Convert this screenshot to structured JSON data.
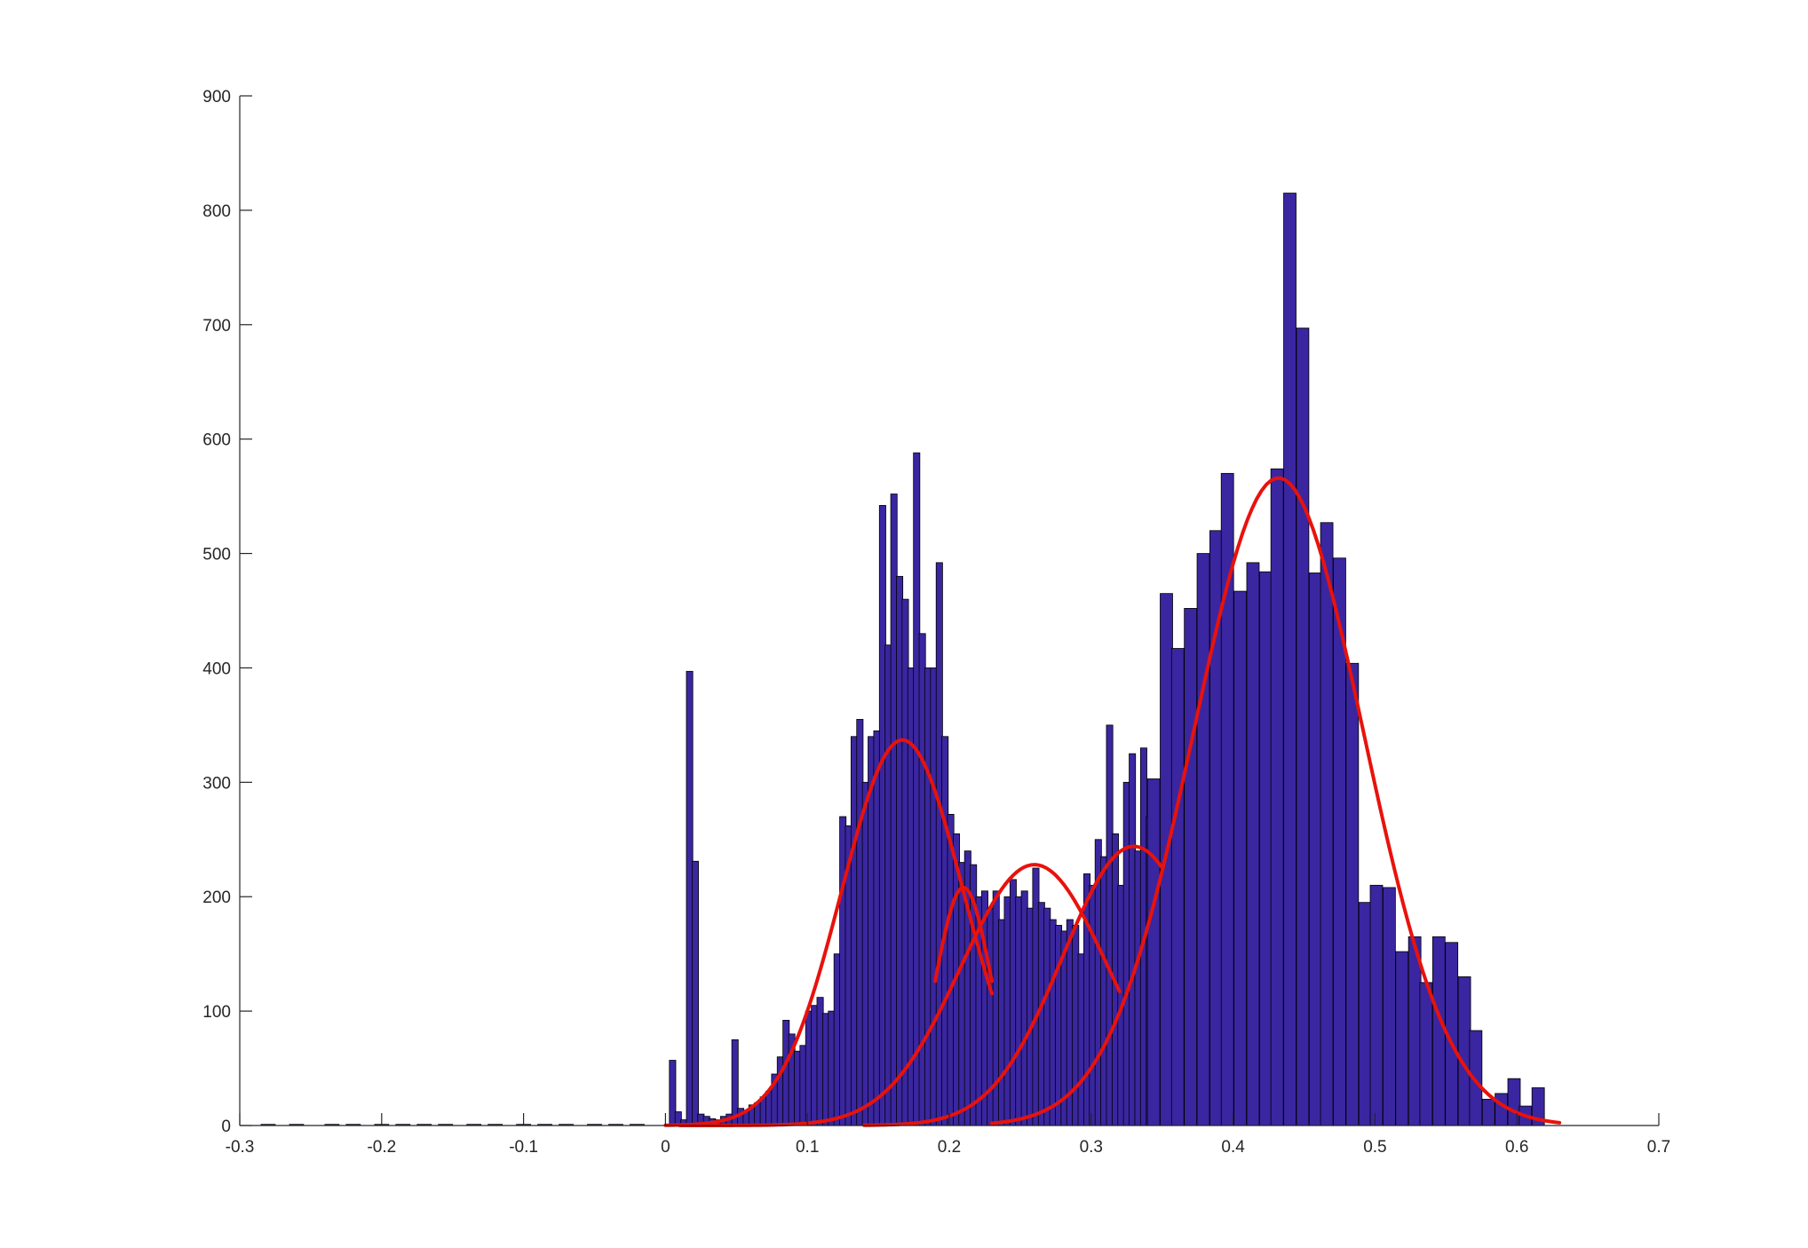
{
  "chart_data": {
    "type": "bar",
    "title": "",
    "xlabel": "",
    "ylabel": "",
    "xlim": [
      -0.3,
      0.7
    ],
    "ylim": [
      0,
      900
    ],
    "xticks": [
      "-0.3",
      "-0.2",
      "-0.1",
      "0",
      "0.1",
      "0.2",
      "0.3",
      "0.4",
      "0.5",
      "0.6",
      "0.7"
    ],
    "yticks": [
      "0",
      "100",
      "200",
      "300",
      "400",
      "500",
      "600",
      "700",
      "800",
      "900"
    ],
    "grid": false,
    "legend": "none",
    "colors": {
      "bars": "#3a26a0",
      "bar_edge": "#000000",
      "fit_curves": "#e8120c",
      "axis": "#262626"
    },
    "series": [
      {
        "type": "histogram",
        "bin_width": 0.01,
        "bins": [
          [
            -0.28,
            1
          ],
          [
            -0.26,
            1
          ],
          [
            -0.235,
            1
          ],
          [
            -0.22,
            1
          ],
          [
            -0.2,
            1
          ],
          [
            -0.185,
            1
          ],
          [
            -0.17,
            1
          ],
          [
            -0.155,
            1
          ],
          [
            -0.135,
            1
          ],
          [
            -0.12,
            1
          ],
          [
            -0.1,
            1
          ],
          [
            -0.085,
            1
          ],
          [
            -0.07,
            1
          ],
          [
            -0.05,
            1
          ],
          [
            -0.035,
            1
          ],
          [
            -0.02,
            1
          ]
        ]
      },
      {
        "type": "histogram",
        "bin_width": 0.0045,
        "bins": [
          [
            0.005,
            57
          ],
          [
            0.009,
            12
          ],
          [
            0.013,
            5
          ],
          [
            0.017,
            397
          ],
          [
            0.021,
            231
          ],
          [
            0.025,
            10
          ],
          [
            0.029,
            8
          ],
          [
            0.033,
            6
          ],
          [
            0.037,
            5
          ],
          [
            0.041,
            8
          ],
          [
            0.045,
            10
          ],
          [
            0.049,
            75
          ],
          [
            0.053,
            15
          ],
          [
            0.057,
            13
          ],
          [
            0.061,
            18
          ],
          [
            0.065,
            20
          ],
          [
            0.069,
            25
          ],
          [
            0.073,
            30
          ],
          [
            0.077,
            45
          ],
          [
            0.081,
            60
          ],
          [
            0.085,
            92
          ],
          [
            0.089,
            80
          ],
          [
            0.093,
            65
          ],
          [
            0.097,
            70
          ],
          [
            0.101,
            100
          ],
          [
            0.105,
            105
          ],
          [
            0.109,
            112
          ],
          [
            0.113,
            98
          ],
          [
            0.117,
            100
          ],
          [
            0.121,
            150
          ],
          [
            0.125,
            270
          ],
          [
            0.129,
            262
          ],
          [
            0.133,
            340
          ],
          [
            0.137,
            355
          ],
          [
            0.141,
            300
          ],
          [
            0.145,
            340
          ],
          [
            0.149,
            345
          ],
          [
            0.153,
            542
          ],
          [
            0.157,
            420
          ],
          [
            0.161,
            552
          ],
          [
            0.165,
            480
          ],
          [
            0.169,
            460
          ],
          [
            0.173,
            400
          ],
          [
            0.177,
            588
          ],
          [
            0.181,
            430
          ],
          [
            0.185,
            400
          ],
          [
            0.189,
            400
          ],
          [
            0.193,
            492
          ],
          [
            0.197,
            340
          ],
          [
            0.201,
            272
          ],
          [
            0.205,
            255
          ],
          [
            0.209,
            230
          ],
          [
            0.213,
            240
          ],
          [
            0.217,
            228
          ],
          [
            0.221,
            200
          ],
          [
            0.225,
            205
          ],
          [
            0.229,
            190
          ],
          [
            0.233,
            205
          ],
          [
            0.237,
            180
          ],
          [
            0.241,
            200
          ],
          [
            0.245,
            215
          ],
          [
            0.249,
            200
          ],
          [
            0.253,
            205
          ],
          [
            0.257,
            190
          ],
          [
            0.261,
            225
          ],
          [
            0.265,
            195
          ],
          [
            0.269,
            190
          ],
          [
            0.273,
            180
          ],
          [
            0.277,
            175
          ],
          [
            0.281,
            170
          ],
          [
            0.285,
            180
          ],
          [
            0.289,
            175
          ],
          [
            0.293,
            150
          ],
          [
            0.297,
            220
          ],
          [
            0.301,
            210
          ],
          [
            0.305,
            250
          ],
          [
            0.309,
            235
          ],
          [
            0.313,
            350
          ],
          [
            0.317,
            255
          ],
          [
            0.321,
            210
          ],
          [
            0.325,
            300
          ],
          [
            0.329,
            325
          ],
          [
            0.333,
            240
          ],
          [
            0.337,
            330
          ],
          [
            0.341,
            270
          ]
        ]
      },
      {
        "type": "histogram",
        "bin_width": 0.00875,
        "bins": [
          [
            0.344,
            303
          ],
          [
            0.353,
            465
          ],
          [
            0.361,
            417
          ],
          [
            0.37,
            452
          ],
          [
            0.379,
            500
          ],
          [
            0.388,
            520
          ],
          [
            0.396,
            570
          ],
          [
            0.405,
            467
          ],
          [
            0.414,
            492
          ],
          [
            0.423,
            484
          ],
          [
            0.431,
            574
          ],
          [
            0.44,
            815
          ],
          [
            0.449,
            697
          ],
          [
            0.458,
            483
          ],
          [
            0.466,
            527
          ],
          [
            0.475,
            496
          ],
          [
            0.484,
            404
          ],
          [
            0.493,
            195
          ],
          [
            0.501,
            210
          ],
          [
            0.51,
            208
          ],
          [
            0.519,
            152
          ],
          [
            0.528,
            165
          ],
          [
            0.536,
            125
          ],
          [
            0.545,
            165
          ],
          [
            0.554,
            160
          ],
          [
            0.563,
            130
          ],
          [
            0.571,
            83
          ],
          [
            0.58,
            23
          ],
          [
            0.589,
            28
          ],
          [
            0.598,
            41
          ],
          [
            0.606,
            17
          ],
          [
            0.615,
            33
          ]
        ]
      },
      {
        "type": "line",
        "kind": "normal-fit",
        "mu": 0.167,
        "sigma": 0.043,
        "peak": 337,
        "x_range": [
          0.0,
          0.23
        ]
      },
      {
        "type": "line",
        "kind": "normal-fit",
        "mu": 0.21,
        "sigma": 0.02,
        "peak": 208,
        "x_range": [
          0.19,
          0.23
        ]
      },
      {
        "type": "line",
        "kind": "normal-fit",
        "mu": 0.26,
        "sigma": 0.052,
        "peak": 228,
        "x_range": [
          0.01,
          0.32
        ]
      },
      {
        "type": "line",
        "kind": "normal-fit",
        "mu": 0.33,
        "sigma": 0.05,
        "peak": 244,
        "x_range": [
          0.14,
          0.35
        ]
      },
      {
        "type": "line",
        "kind": "normal-fit",
        "mu": 0.432,
        "sigma": 0.06,
        "peak": 566,
        "x_range": [
          0.23,
          0.63
        ]
      }
    ]
  }
}
